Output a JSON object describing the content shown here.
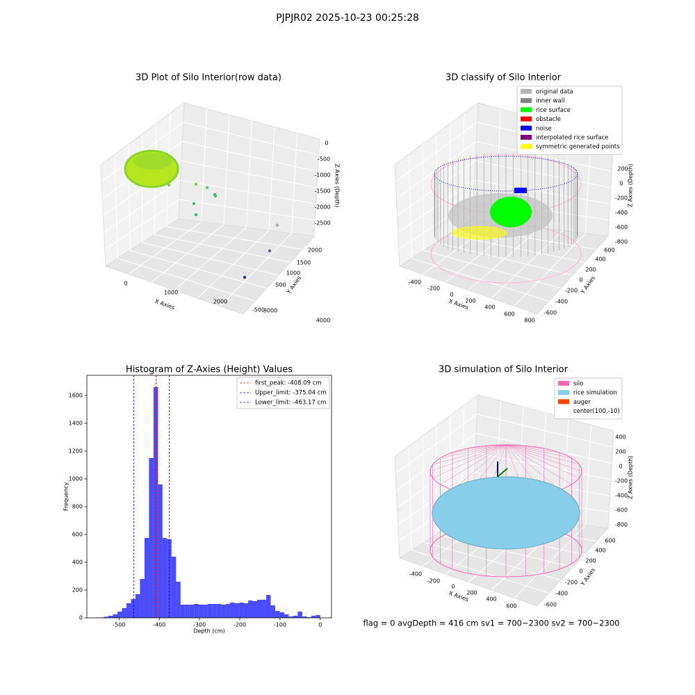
{
  "title": "PJPJR02 2025-10-23 00:25:28",
  "footer": "flag = 0     avgDepth = 416 cm  sv1 = 700~2300  sv2 = 700~2300",
  "chart_data": [
    {
      "type": "scatter3d",
      "title": "3D Plot of Silo Interior(row data)",
      "xlabel": "X Axies",
      "ylabel": "Y Axies",
      "zlabel": "Z Axies (Depth)",
      "xticks": [
        0,
        1000,
        2000,
        3000,
        4000
      ],
      "yticks": [
        -500,
        500,
        1000,
        1500,
        2000
      ],
      "zticks": [
        0,
        -500,
        -1000,
        -1500,
        -2000,
        -2500
      ]
    },
    {
      "type": "scatter3d",
      "title": "3D classify of Silo Interior",
      "xlabel": "X Axies",
      "ylabel": "Y Axies",
      "zlabel": "Z Axies (Depth)",
      "xticks": [
        -400,
        -200,
        0,
        200,
        400,
        600,
        800
      ],
      "yticks": [
        600,
        400,
        200,
        0,
        -200,
        -400,
        -600
      ],
      "zticks": [
        200,
        0,
        -200,
        -400,
        -600,
        -800
      ],
      "series": [
        {
          "name": "original data",
          "color": "#b3b3b3"
        },
        {
          "name": "inner wall",
          "color": "#808080"
        },
        {
          "name": "rice surface",
          "color": "#00ff00"
        },
        {
          "name": "obstacle",
          "color": "#ff0000"
        },
        {
          "name": "noise",
          "color": "#0000ff"
        },
        {
          "name": "interpolated rice surface",
          "color": "#800080"
        },
        {
          "name": "symmetric generated points",
          "color": "#ffff00"
        }
      ]
    },
    {
      "type": "histogram",
      "title": "Histogram of Z-Axies (Height) Values",
      "xlabel": "Depth (cm)",
      "ylabel": "Frequency",
      "color": "#0000ff",
      "bins": [
        -560,
        -548.8,
        -537.6,
        -526.4,
        -515.2,
        -504,
        -492.8,
        -481.6,
        -470.4,
        -459.2,
        -448,
        -436.8,
        -425.6,
        -414.4,
        -403.2,
        -392,
        -380.8,
        -369.6,
        -358.4,
        -347.2,
        -336,
        -324.8,
        -313.6,
        -302.4,
        -291.2,
        -280,
        -268.8,
        -257.6,
        -246.4,
        -235.2,
        -224,
        -212.8,
        -201.6,
        -190.4,
        -179.2,
        -168,
        -156.8,
        -145.6,
        -134.4,
        -123.2,
        -112,
        -100.8,
        -89.6,
        -78.4,
        -67.2,
        -56,
        -44.8,
        -33.6,
        -22.4,
        -11.2,
        0
      ],
      "values": [
        2,
        3,
        8,
        15,
        25,
        45,
        70,
        105,
        135,
        170,
        280,
        575,
        1150,
        1660,
        960,
        575,
        565,
        440,
        260,
        95,
        95,
        95,
        100,
        95,
        95,
        100,
        100,
        100,
        95,
        100,
        110,
        105,
        110,
        105,
        125,
        120,
        130,
        130,
        165,
        90,
        50,
        40,
        25,
        10,
        15,
        45,
        10,
        5,
        15,
        20
      ],
      "xlim": [
        -580,
        28
      ],
      "ylim": [
        0,
        1745
      ],
      "xticks": [
        -500,
        -400,
        -300,
        -200,
        -100,
        0
      ],
      "yticks": [
        0,
        200,
        400,
        600,
        800,
        1000,
        1200,
        1400,
        1600
      ],
      "lines": [
        {
          "label": "first_peak: -408.09 cm",
          "value": -408.09,
          "color": "#ff0000"
        },
        {
          "label": "Upper_limit: -375.04 cm",
          "value": -375.04,
          "color": "#0000ff"
        },
        {
          "label": "Lower_limit: -463.17 cm",
          "value": -463.17,
          "color": "#0000ff"
        }
      ]
    },
    {
      "type": "surface3d",
      "title": "3D simulation of Silo Interior",
      "xlabel": "X Axies",
      "ylabel": "Y Axies",
      "zlabel": "Z Axies (Depth)",
      "xticks": [
        -400,
        -200,
        0,
        200,
        400,
        600
      ],
      "yticks": [
        600,
        400,
        200,
        0,
        -200,
        -400,
        -600
      ],
      "zticks": [
        400,
        200,
        0,
        -200,
        -400,
        -600,
        -800
      ],
      "series": [
        {
          "name": "silo",
          "color": "#ff69b4"
        },
        {
          "name": "rice simulation",
          "color": "#87ceeb"
        },
        {
          "name": "auger",
          "color": "#ff4500"
        },
        {
          "name": "center(100,-10)",
          "color": "#ffffff"
        }
      ]
    }
  ]
}
